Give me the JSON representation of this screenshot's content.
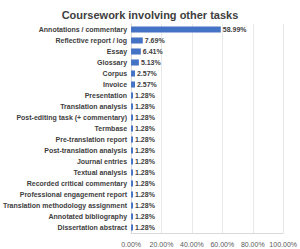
{
  "chart_data": {
    "type": "bar",
    "title": "Coursework involving other tasks",
    "orientation": "horizontal",
    "categories": [
      "Annotations / commentary",
      "Reflective report / log",
      "Essay",
      "Glossary",
      "Corpus",
      "Invoice",
      "Presentation",
      "Translation analysis",
      "Post-editing task (+ commentary)",
      "Termbase",
      "Pre-translation report",
      "Post-translation analysis",
      "Journal entries",
      "Textual analysis",
      "Recorded critical commentary",
      "Professional engagement report",
      "Translation methodology assignment",
      "Annotated bibliography",
      "Dissertation abstract"
    ],
    "values": [
      58.99,
      7.69,
      6.41,
      5.13,
      2.57,
      2.57,
      1.28,
      1.28,
      1.28,
      1.28,
      1.28,
      1.28,
      1.28,
      1.28,
      1.28,
      1.28,
      1.28,
      1.28,
      1.28
    ],
    "value_labels": [
      "58.99%",
      "7.69%",
      "6.41%",
      "5.13%",
      "2.57%",
      "2.57%",
      "1.28%",
      "1.28%",
      "1.28%",
      "1.28%",
      "1.28%",
      "1.28%",
      "1.28%",
      "1.28%",
      "1.28%",
      "1.28%",
      "1.28%",
      "1.28%",
      "1.28%"
    ],
    "data_labels": true,
    "color": "#4472c4",
    "xlim": [
      0,
      100
    ],
    "xticks": [
      {
        "value": 0,
        "label": "0.00%"
      },
      {
        "value": 20,
        "label": "20.00%"
      },
      {
        "value": 40,
        "label": "40.00%"
      },
      {
        "value": 60,
        "label": "60.00%"
      },
      {
        "value": 80,
        "label": "80.00%"
      },
      {
        "value": 100,
        "label": "100.00%"
      }
    ],
    "grid": true
  }
}
